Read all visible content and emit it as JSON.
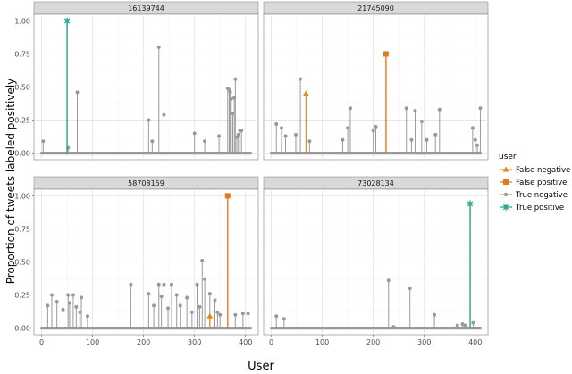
{
  "chart_data": {
    "type": "scatter",
    "title": "",
    "xlabel": "User",
    "ylabel": "Proportion of tweets labeled positively",
    "xlim": [
      -15,
      425
    ],
    "ylim": [
      -0.05,
      1.05
    ],
    "x_ticks": [
      0,
      100,
      200,
      300,
      400
    ],
    "y_ticks": [
      0,
      0.25,
      0.5,
      0.75,
      1
    ],
    "y_tick_labels": [
      "0.00",
      "0.25",
      "0.50",
      "0.75",
      "1.00"
    ],
    "grid": true,
    "facets": [
      "16139744",
      "21745090",
      "58708159",
      "73028134"
    ],
    "legend": {
      "title": "user",
      "position": "right",
      "entries": [
        {
          "label": "False negative",
          "color": "#e08a1c",
          "shape": "triangle"
        },
        {
          "label": "False positive",
          "color": "#e07a1c",
          "shape": "square"
        },
        {
          "label": "True negative",
          "color": "#999999",
          "shape": "circle"
        },
        {
          "label": "True positive",
          "color": "#1fa587",
          "shape": "star"
        }
      ]
    },
    "panels": [
      {
        "id": "16139744",
        "true_negative": [
          [
            3,
            0.09
          ],
          [
            52,
            0.04
          ],
          [
            70,
            0.46
          ],
          [
            210,
            0.25
          ],
          [
            217,
            0.09
          ],
          [
            230,
            0.8
          ],
          [
            240,
            0.29
          ],
          [
            300,
            0.15
          ],
          [
            320,
            0.09
          ],
          [
            348,
            0.13
          ],
          [
            365,
            0.49
          ],
          [
            368,
            0.48
          ],
          [
            370,
            0.46
          ],
          [
            372,
            0.41
          ],
          [
            375,
            0.3
          ],
          [
            378,
            0.42
          ],
          [
            380,
            0.56
          ],
          [
            383,
            0.12
          ],
          [
            386,
            0.14
          ],
          [
            389,
            0.17
          ],
          [
            392,
            0.17
          ]
        ],
        "true_positive": [
          [
            50,
            1.0
          ]
        ],
        "false_positive": [],
        "false_negative": []
      },
      {
        "id": "21745090",
        "true_negative": [
          [
            10,
            0.22
          ],
          [
            20,
            0.19
          ],
          [
            28,
            0.13
          ],
          [
            48,
            0.14
          ],
          [
            57,
            0.56
          ],
          [
            75,
            0.09
          ],
          [
            140,
            0.1
          ],
          [
            150,
            0.19
          ],
          [
            155,
            0.34
          ],
          [
            200,
            0.17
          ],
          [
            205,
            0.2
          ],
          [
            265,
            0.34
          ],
          [
            275,
            0.1
          ],
          [
            282,
            0.32
          ],
          [
            295,
            0.24
          ],
          [
            305,
            0.1
          ],
          [
            322,
            0.14
          ],
          [
            330,
            0.33
          ],
          [
            395,
            0.19
          ],
          [
            400,
            0.1
          ],
          [
            404,
            0.06
          ],
          [
            410,
            0.34
          ]
        ],
        "false_positive": [
          [
            225,
            0.75
          ]
        ],
        "false_negative": [
          [
            68,
            0.45
          ]
        ],
        "true_positive": []
      },
      {
        "id": "58708159",
        "true_negative": [
          [
            12,
            0.17
          ],
          [
            20,
            0.25
          ],
          [
            30,
            0.2
          ],
          [
            42,
            0.14
          ],
          [
            52,
            0.25
          ],
          [
            55,
            0.19
          ],
          [
            62,
            0.25
          ],
          [
            68,
            0.16
          ],
          [
            75,
            0.12
          ],
          [
            78,
            0.23
          ],
          [
            90,
            0.09
          ],
          [
            175,
            0.33
          ],
          [
            210,
            0.26
          ],
          [
            220,
            0.17
          ],
          [
            230,
            0.33
          ],
          [
            235,
            0.24
          ],
          [
            240,
            0.33
          ],
          [
            248,
            0.15
          ],
          [
            255,
            0.33
          ],
          [
            265,
            0.25
          ],
          [
            272,
            0.17
          ],
          [
            285,
            0.23
          ],
          [
            295,
            0.12
          ],
          [
            305,
            0.33
          ],
          [
            310,
            0.16
          ],
          [
            315,
            0.51
          ],
          [
            320,
            0.37
          ],
          [
            330,
            0.26
          ],
          [
            340,
            0.21
          ],
          [
            345,
            0.12
          ],
          [
            350,
            0.1
          ],
          [
            380,
            0.1
          ],
          [
            395,
            0.11
          ],
          [
            405,
            0.11
          ]
        ],
        "false_positive": [
          [
            365,
            1.0
          ]
        ],
        "false_negative": [
          [
            330,
            0.09
          ]
        ],
        "true_positive": []
      },
      {
        "id": "73028134",
        "true_negative": [
          [
            10,
            0.09
          ],
          [
            25,
            0.07
          ],
          [
            230,
            0.36
          ],
          [
            240,
            0.01
          ],
          [
            272,
            0.3
          ],
          [
            320,
            0.1
          ],
          [
            365,
            0.02
          ],
          [
            375,
            0.03
          ],
          [
            380,
            0.02
          ],
          [
            396,
            0.04
          ]
        ],
        "true_positive": [
          [
            390,
            0.94
          ]
        ],
        "false_positive": [],
        "false_negative": []
      }
    ]
  }
}
